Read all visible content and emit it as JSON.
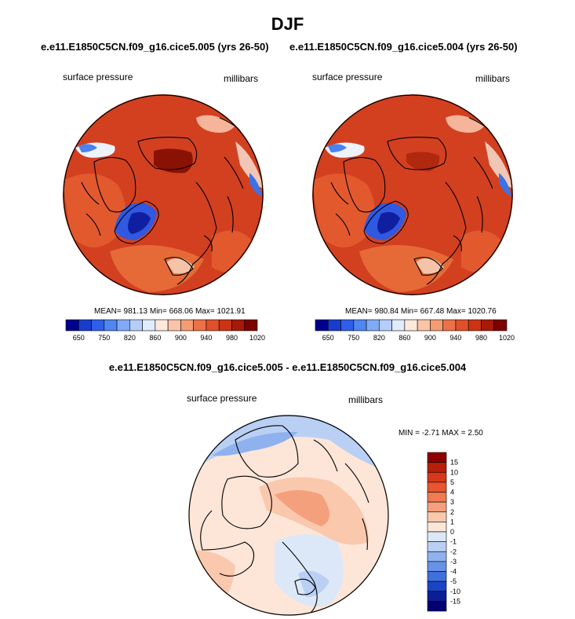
{
  "page": {
    "title": "DJF",
    "case_left": "e.e11.E1850C5CN.f09_g16.cice5.005 (yrs 26-50)",
    "case_right": "e.e11.E1850C5CN.f09_g16.cice5.004 (yrs 26-50)",
    "diff_title": "e.e11.E1850C5CN.f09_g16.cice5.005 - e.e11.E1850C5CN.f09_g16.cice5.004"
  },
  "chart_data": [
    {
      "type": "heatmap",
      "name": "panel-left",
      "variable": "surface pressure",
      "units": "millibars",
      "stats": "MEAN= 981.13  Min= 668.06  Max= 1021.91",
      "colorbar": {
        "labels": [
          "650",
          "750",
          "820",
          "860",
          "900",
          "940",
          "980",
          "1020"
        ],
        "colors": [
          "#00008f",
          "#1a3ccc",
          "#2f5ee8",
          "#4f86f0",
          "#80aaf5",
          "#b5cdf8",
          "#e0ebfb",
          "#fde8dc",
          "#f9c4a8",
          "#f49c74",
          "#ec7148",
          "#e0502a",
          "#cc3414",
          "#a81a08",
          "#7d0000"
        ]
      }
    },
    {
      "type": "heatmap",
      "name": "panel-right",
      "variable": "surface pressure",
      "units": "millibars",
      "stats": "MEAN= 980.84  Min= 667.48  Max= 1020.76",
      "colorbar": {
        "labels": [
          "650",
          "750",
          "820",
          "860",
          "900",
          "940",
          "980",
          "1020"
        ],
        "colors": [
          "#00008f",
          "#1a3ccc",
          "#2f5ee8",
          "#4f86f0",
          "#80aaf5",
          "#b5cdf8",
          "#e0ebfb",
          "#fde8dc",
          "#f9c4a8",
          "#f49c74",
          "#ec7148",
          "#e0502a",
          "#cc3414",
          "#a81a08",
          "#7d0000"
        ]
      }
    },
    {
      "type": "heatmap",
      "name": "panel-diff",
      "variable": "surface pressure",
      "units": "millibars",
      "stats": "MIN =  -2.71 MAX =   2.50",
      "colorbar": {
        "labels": [
          "15",
          "10",
          "5",
          "4",
          "3",
          "2",
          "1",
          "0",
          "-1",
          "-2",
          "-3",
          "-4",
          "-5",
          "-10",
          "-15"
        ],
        "colors": [
          "#8f0000",
          "#b81e0a",
          "#d6381c",
          "#e8552e",
          "#f07a52",
          "#f5a07c",
          "#f9c8ad",
          "#fde6d8",
          "#dce8f8",
          "#b9d0f4",
          "#8fb2ee",
          "#6892e6",
          "#4070dc",
          "#1c44c4",
          "#0a1f96",
          "#000070"
        ]
      }
    }
  ]
}
